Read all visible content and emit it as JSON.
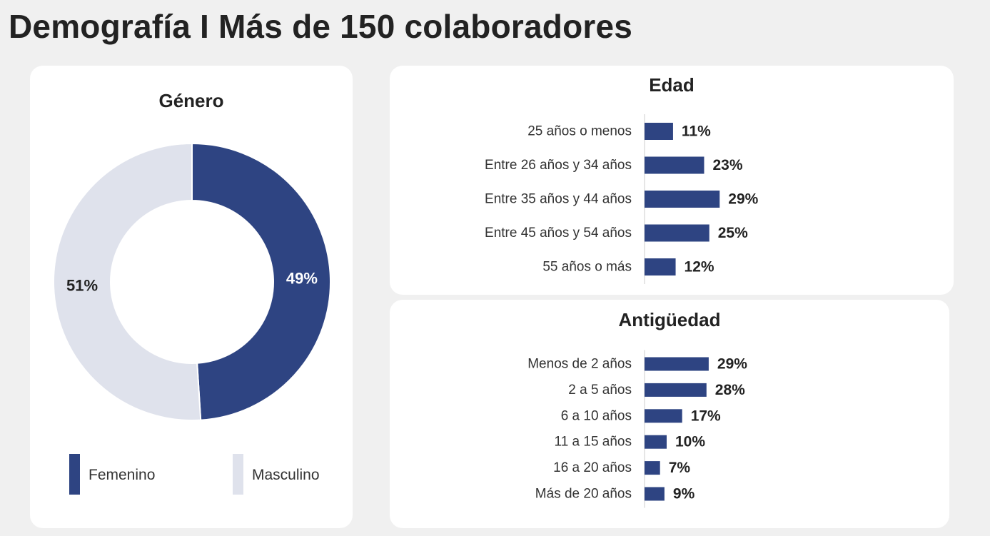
{
  "page": {
    "title": "Demografía I Más de 150 colaboradores"
  },
  "colors": {
    "primary": "#2e4482",
    "secondary": "#dfe2ec",
    "axis": "#cccccc"
  },
  "chart_data": [
    {
      "type": "pie",
      "title": "Género",
      "labels": [
        "Femenino",
        "Masculino"
      ],
      "values": [
        49,
        51
      ],
      "value_labels": [
        "49%",
        "51%"
      ],
      "colors": [
        "#2e4482",
        "#dfe2ec"
      ],
      "donut": true,
      "legend": "bottom"
    },
    {
      "type": "bar",
      "orientation": "horizontal",
      "title": "Edad",
      "categories": [
        "25 años o menos",
        "Entre 26 años y 34 años",
        "Entre 35 años y 44 años",
        "Entre 45 años y 54 años",
        "55 años o más"
      ],
      "values": [
        11,
        23,
        29,
        25,
        12
      ],
      "value_labels": [
        "11%",
        "23%",
        "29%",
        "25%",
        "12%"
      ],
      "grid": false
    },
    {
      "type": "bar",
      "orientation": "horizontal",
      "title": "Antigüedad",
      "categories": [
        "Menos de 2 años",
        "2 a 5 años",
        "6 a 10 años",
        "11 a 15 años",
        "16 a 20 años",
        "Más de 20 años"
      ],
      "values": [
        29,
        28,
        17,
        10,
        7,
        9
      ],
      "value_labels": [
        "29%",
        "28%",
        "17%",
        "10%",
        "7%",
        "9%"
      ],
      "grid": false
    }
  ]
}
